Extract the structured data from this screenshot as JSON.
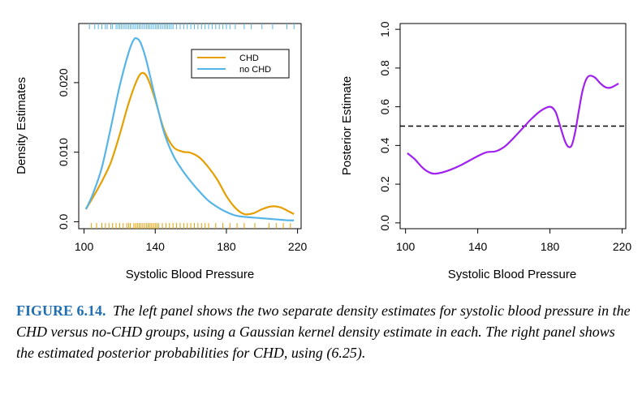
{
  "caption": {
    "label": "FIGURE 6.14.",
    "text": "The left panel shows the two separate density estimates for systolic blood pressure in the CHD versus no-CHD groups, using a Gaussian kernel density estimate in each. The right panel shows the estimated posterior probabilities for CHD, using (6.25)."
  },
  "colors": {
    "chd": "#e69f00",
    "no_chd": "#56b4e9",
    "posterior": "#a020f0",
    "reference": "#000000"
  },
  "chart_data": [
    {
      "type": "line",
      "panel": "left",
      "title": "",
      "xlabel": "Systolic Blood Pressure",
      "ylabel": "Density Estimates",
      "xlim": [
        97,
        222
      ],
      "ylim": [
        -0.001,
        0.0285
      ],
      "xticks": [
        "100",
        "140",
        "180",
        "220"
      ],
      "yticks": [
        "0.0",
        "0.010",
        "0.020"
      ],
      "legend": {
        "position": "top-right",
        "entries": [
          "CHD",
          "no CHD"
        ]
      },
      "series": [
        {
          "name": "CHD",
          "x": [
            101,
            105,
            110,
            115,
            120,
            125,
            130,
            133,
            136,
            140,
            145,
            150,
            155,
            160,
            165,
            170,
            175,
            180,
            185,
            190,
            195,
            200,
            205,
            210,
            215,
            218
          ],
          "y": [
            0.0018,
            0.0035,
            0.0058,
            0.0085,
            0.0125,
            0.017,
            0.0205,
            0.0214,
            0.0205,
            0.0175,
            0.0132,
            0.0108,
            0.0101,
            0.0099,
            0.0092,
            0.0078,
            0.006,
            0.0037,
            0.002,
            0.0011,
            0.0012,
            0.0018,
            0.0022,
            0.0021,
            0.0015,
            0.0011
          ]
        },
        {
          "name": "no CHD",
          "x": [
            101,
            105,
            110,
            115,
            120,
            125,
            128,
            130,
            132,
            135,
            140,
            145,
            150,
            155,
            160,
            165,
            170,
            175,
            180,
            185,
            190,
            195,
            200,
            205,
            210,
            215,
            218
          ],
          "y": [
            0.0018,
            0.004,
            0.0078,
            0.0135,
            0.0195,
            0.0243,
            0.0262,
            0.0263,
            0.0256,
            0.0232,
            0.0178,
            0.0128,
            0.0096,
            0.0075,
            0.0058,
            0.0043,
            0.003,
            0.0021,
            0.0014,
            0.0009,
            0.0007,
            0.0006,
            0.0005,
            0.0004,
            0.0003,
            0.0002,
            0.0002
          ]
        }
      ],
      "rug": {
        "no_chd_top": [
          103,
          106,
          108,
          110,
          112,
          113,
          115,
          116,
          118,
          119,
          120,
          121,
          122,
          123,
          124,
          125,
          126,
          127,
          128,
          129,
          130,
          131,
          132,
          133,
          134,
          135,
          136,
          137,
          138,
          139,
          140,
          141,
          142,
          143,
          144,
          145,
          146,
          147,
          148,
          149,
          150,
          152,
          154,
          156,
          158,
          160,
          162,
          164,
          166,
          168,
          170,
          172,
          174,
          176,
          178,
          180,
          182,
          185,
          190,
          194,
          200,
          206,
          214,
          218
        ],
        "chd_bottom": [
          104,
          107,
          110,
          112,
          114,
          116,
          118,
          120,
          122,
          124,
          125,
          126,
          128,
          129,
          130,
          131,
          132,
          133,
          134,
          135,
          136,
          137,
          138,
          139,
          140,
          141,
          142,
          144,
          146,
          148,
          150,
          152,
          154,
          156,
          158,
          160,
          162,
          164,
          166,
          168,
          170,
          174,
          178,
          182,
          186,
          190,
          196,
          204,
          208,
          212,
          216
        ]
      }
    },
    {
      "type": "line",
      "panel": "right",
      "title": "",
      "xlabel": "Systolic Blood Pressure",
      "ylabel": "Posterior Estimate",
      "xlim": [
        97,
        222
      ],
      "ylim": [
        -0.03,
        1.03
      ],
      "xticks": [
        "100",
        "140",
        "180",
        "220"
      ],
      "yticks": [
        "0.0",
        "0.2",
        "0.4",
        "0.6",
        "0.8",
        "1.0"
      ],
      "reference_line": {
        "y": 0.5,
        "style": "dashed"
      },
      "series": [
        {
          "name": "",
          "x": [
            101,
            105,
            110,
            115,
            120,
            125,
            130,
            135,
            140,
            145,
            150,
            155,
            160,
            165,
            170,
            175,
            180,
            183,
            185,
            188,
            190,
            192,
            194,
            196,
            198,
            200,
            202,
            205,
            208,
            211,
            214,
            218
          ],
          "y": [
            0.36,
            0.33,
            0.28,
            0.255,
            0.26,
            0.275,
            0.295,
            0.32,
            0.345,
            0.365,
            0.37,
            0.395,
            0.44,
            0.49,
            0.54,
            0.58,
            0.6,
            0.575,
            0.52,
            0.43,
            0.395,
            0.4,
            0.47,
            0.58,
            0.68,
            0.74,
            0.76,
            0.75,
            0.72,
            0.7,
            0.7,
            0.72
          ]
        }
      ]
    }
  ]
}
